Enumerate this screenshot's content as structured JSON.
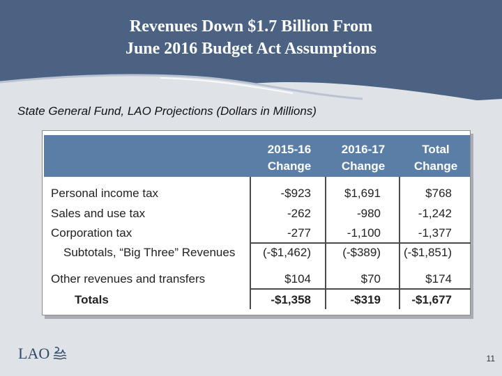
{
  "slide": {
    "title_line1": "Revenues Down $1.7 Billion From",
    "title_line2": "June 2016 Budget Act Assumptions",
    "subtitle": "State General Fund, LAO Projections (Dollars in Millions)",
    "logo_text": "LAO",
    "page_number": "11"
  },
  "table": {
    "headers": [
      {
        "line1": "2015-16",
        "line2": "Change"
      },
      {
        "line1": "2016-17",
        "line2": "Change"
      },
      {
        "line1": "Total",
        "line2": "Change"
      }
    ],
    "rows": [
      {
        "label": "Personal income tax",
        "values": [
          "-$923",
          "$1,691",
          "$768"
        ]
      },
      {
        "label": "Sales and use tax",
        "values": [
          "-262",
          "-980",
          "-1,242"
        ]
      },
      {
        "label": "Corporation tax",
        "values": [
          "-277",
          "-1,100",
          "-1,377"
        ]
      },
      {
        "label": "Subtotals, “Big Three” Revenues",
        "values": [
          "(-$1,462)",
          "(-$389)",
          "(-$1,851)"
        ]
      },
      {
        "label": "Other revenues and transfers",
        "values": [
          "$104",
          "$70",
          "$174"
        ]
      },
      {
        "label": "Totals",
        "values": [
          "-$1,358",
          "-$319",
          "-$1,677"
        ]
      }
    ]
  },
  "colors": {
    "header_band": "#4a6185",
    "table_header": "#5b7ea6",
    "background": "#dfe3e8"
  }
}
